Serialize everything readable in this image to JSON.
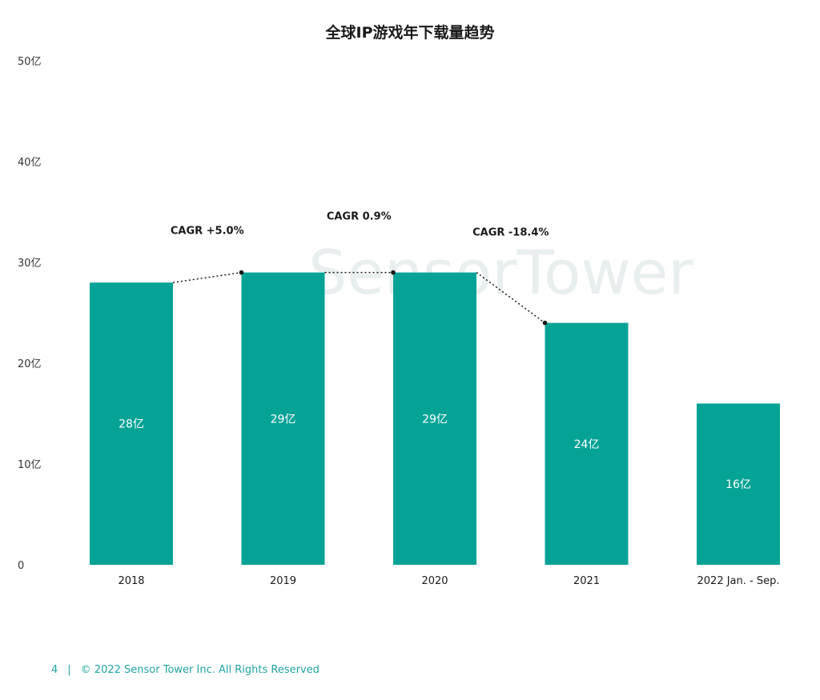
{
  "chart_data": {
    "type": "bar",
    "title": "全球IP游戏年下载量趋势",
    "categories": [
      "2018",
      "2019",
      "2020",
      "2021",
      "2022 Jan. - Sep."
    ],
    "values": [
      28,
      29,
      29,
      24,
      16
    ],
    "value_labels": [
      "28亿",
      "29亿",
      "29亿",
      "24亿",
      "16亿"
    ],
    "ylim": [
      0,
      50
    ],
    "yticks": [
      0,
      10,
      20,
      30,
      40,
      50
    ],
    "ytick_labels": [
      "0",
      "10亿",
      "20亿",
      "30亿",
      "40亿",
      "50亿"
    ],
    "xlabel": "",
    "ylabel": "",
    "bar_color": "#05a396",
    "grid": false,
    "annotations": [
      {
        "text": "CAGR +5.0%",
        "from_index": 0,
        "to_index": 1
      },
      {
        "text": "CAGR 0.9%",
        "from_index": 1,
        "to_index": 2
      },
      {
        "text": "CAGR -18.4%",
        "from_index": 2,
        "to_index": 3
      }
    ]
  },
  "watermark": "SensorTower",
  "footer": {
    "page_number": "4",
    "separator": "|",
    "copyright": "© 2022 Sensor Tower Inc.   All Rights Reserved"
  }
}
